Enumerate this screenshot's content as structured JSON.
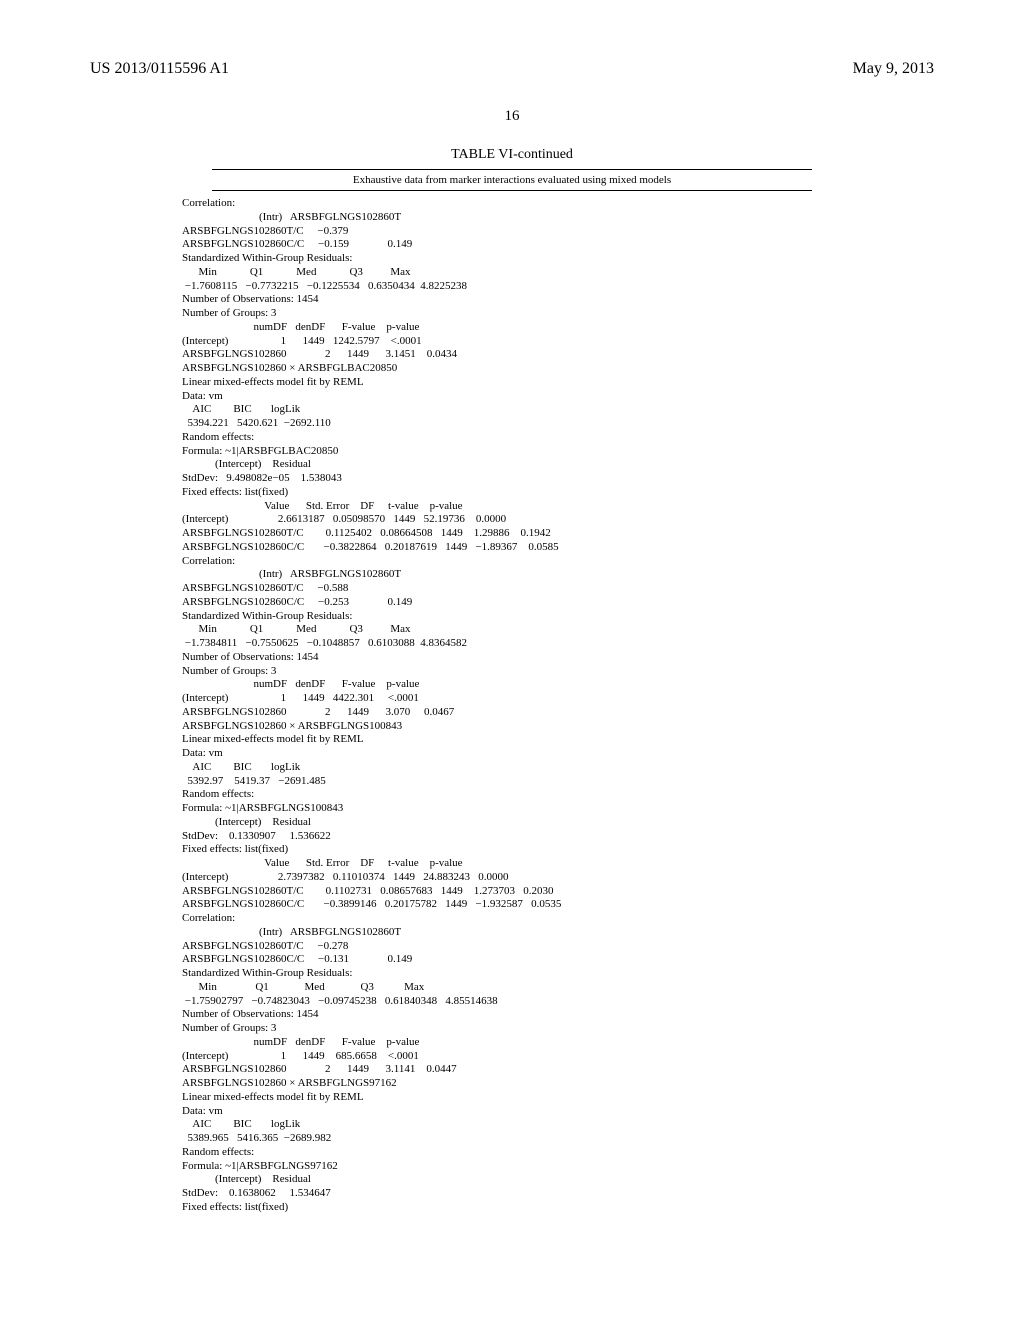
{
  "header": {
    "left": "US 2013/0115596 A1",
    "right": "May 9, 2013"
  },
  "pageNumber": "16",
  "table": {
    "title": "TABLE VI-continued",
    "subtitle": "Exhaustive data from marker interactions evaluated using mixed models"
  },
  "lines": [
    "Correlation:",
    "                            (Intr)   ARSBFGLNGS102860T",
    "ARSBFGLNGS102860T/C     −0.379",
    "ARSBFGLNGS102860C/C     −0.159              0.149",
    "Standardized Within-Group Residuals:",
    "      Min            Q1            Med            Q3          Max",
    " −1.7608115   −0.7732215   −0.1225534   0.6350434  4.8225238",
    "Number of Observations: 1454",
    "Number of Groups: 3",
    "                          numDF   denDF      F-value    p-value",
    "(Intercept)                   1      1449   1242.5797    <.0001",
    "ARSBFGLNGS102860              2      1449      3.1451    0.0434",
    "ARSBFGLNGS102860 × ARSBFGLBAC20850",
    "Linear mixed-effects model fit by REML",
    "Data: vm",
    "    AIC        BIC       logLik",
    "  5394.221   5420.621  −2692.110",
    "Random effects:",
    "Formula: ~1|ARSBFGLBAC20850",
    "            (Intercept)    Residual",
    "StdDev:   9.498082e−05    1.538043",
    "Fixed effects: list(fixed)",
    "                              Value      Std. Error    DF     t-value    p-value",
    "(Intercept)                  2.6613187   0.05098570   1449   52.19736    0.0000",
    "ARSBFGLNGS102860T/C        0.1125402   0.08664508   1449    1.29886    0.1942",
    "ARSBFGLNGS102860C/C       −0.3822864   0.20187619   1449   −1.89367    0.0585",
    "Correlation:",
    "                            (Intr)   ARSBFGLNGS102860T",
    "ARSBFGLNGS102860T/C     −0.588",
    "ARSBFGLNGS102860C/C     −0.253              0.149",
    "Standardized Within-Group Residuals:",
    "      Min            Q1            Med            Q3          Max",
    " −1.7384811   −0.7550625   −0.1048857   0.6103088  4.8364582",
    "Number of Observations: 1454",
    "Number of Groups: 3",
    "                          numDF   denDF      F-value    p-value",
    "(Intercept)                   1      1449   4422.301     <.0001",
    "ARSBFGLNGS102860              2      1449      3.070     0.0467",
    "ARSBFGLNGS102860 × ARSBFGLNGS100843",
    "Linear mixed-effects model fit by REML",
    "Data: vm",
    "    AIC        BIC       logLik",
    "  5392.97    5419.37   −2691.485",
    "Random effects:",
    "Formula: ~1|ARSBFGLNGS100843",
    "            (Intercept)    Residual",
    "StdDev:    0.1330907     1.536622",
    "Fixed effects: list(fixed)",
    "                              Value      Std. Error    DF     t-value    p-value",
    "(Intercept)                  2.7397382   0.11010374   1449   24.883243   0.0000",
    "ARSBFGLNGS102860T/C        0.1102731   0.08657683   1449    1.273703   0.2030",
    "ARSBFGLNGS102860C/C       −0.3899146   0.20175782   1449   −1.932587   0.0535",
    "Correlation:",
    "                            (Intr)   ARSBFGLNGS102860T",
    "ARSBFGLNGS102860T/C     −0.278",
    "ARSBFGLNGS102860C/C     −0.131              0.149",
    "Standardized Within-Group Residuals:",
    "      Min              Q1             Med             Q3           Max",
    " −1.75902797   −0.74823043   −0.09745238   0.61840348   4.85514638",
    "Number of Observations: 1454",
    "Number of Groups: 3",
    "                          numDF   denDF      F-value    p-value",
    "(Intercept)                   1      1449    685.6658    <.0001",
    "ARSBFGLNGS102860              2      1449      3.1141    0.0447",
    "ARSBFGLNGS102860 × ARSBFGLNGS97162",
    "Linear mixed-effects model fit by REML",
    "Data: vm",
    "    AIC        BIC       logLik",
    "  5389.965   5416.365  −2689.982",
    "Random effects:",
    "Formula: ~1|ARSBFGLNGS97162",
    "            (Intercept)    Residual",
    "StdDev:    0.1638062     1.534647",
    "Fixed effects: list(fixed)"
  ]
}
